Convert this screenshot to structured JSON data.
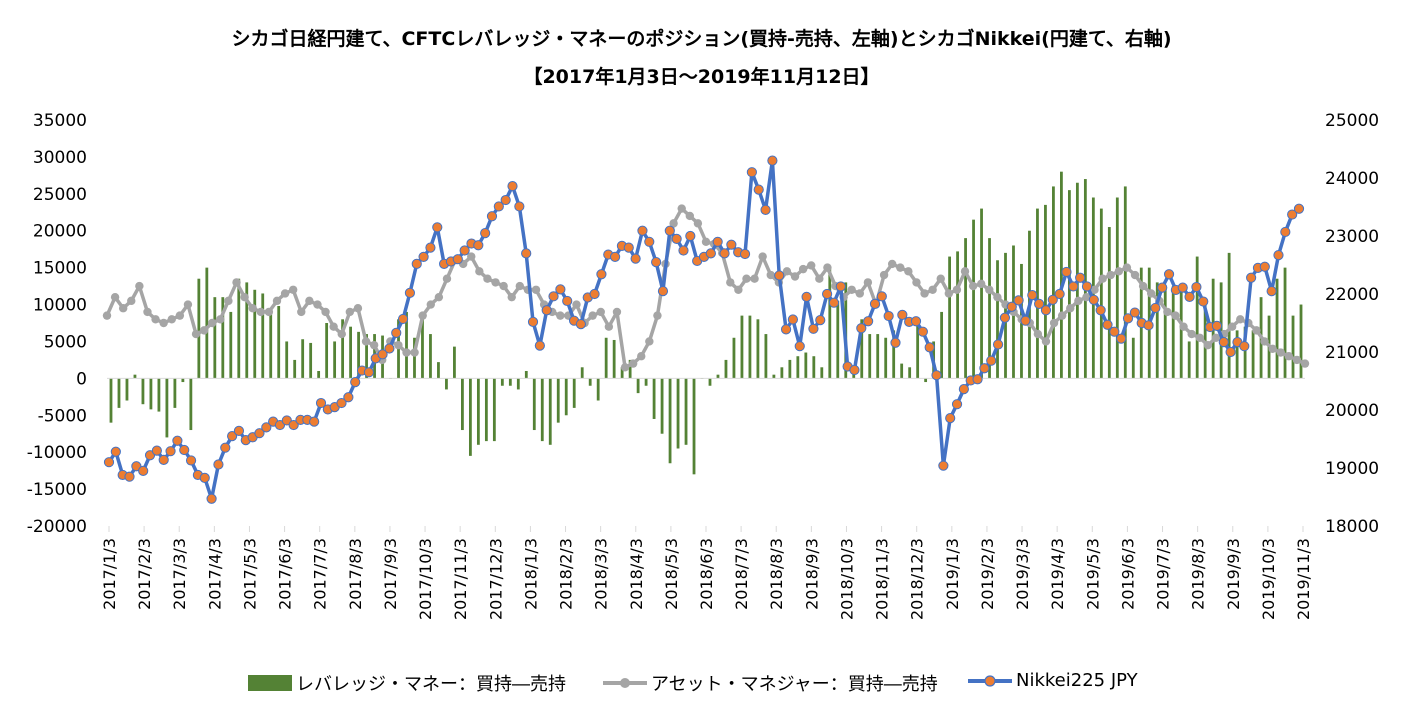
{
  "chart_data": {
    "type": "bar+line",
    "title": "シカゴ日経円建て、CFTCレバレッジ・マネーのポジション(買持-売持、左軸)とシカゴNikkei(円建て、右軸)",
    "subtitle": "【2017年1月3日～2019年11月12日】",
    "left_axis": {
      "range": [
        -20000,
        35000
      ],
      "ticks": [
        "-20000",
        "-15000",
        "-10000",
        "-5000",
        "0",
        "5000",
        "10000",
        "15000",
        "20000",
        "25000",
        "30000",
        "35000"
      ]
    },
    "right_axis": {
      "range": [
        18000,
        25000
      ],
      "ticks": [
        "18000",
        "19000",
        "20000",
        "21000",
        "22000",
        "23000",
        "24000",
        "25000"
      ]
    },
    "x_tick_labels": [
      "2017/1/3",
      "2017/2/3",
      "2017/3/3",
      "2017/4/3",
      "2017/5/3",
      "2017/6/3",
      "2017/7/3",
      "2017/8/3",
      "2017/9/3",
      "2017/10/3",
      "2017/11/3",
      "2017/12/3",
      "2018/1/3",
      "2018/2/3",
      "2018/3/3",
      "2018/4/3",
      "2018/5/3",
      "2018/6/3",
      "2018/7/3",
      "2018/8/3",
      "2018/9/3",
      "2018/10/3",
      "2018/11/3",
      "2018/12/3",
      "2019/1/3",
      "2019/2/3",
      "2019/3/3",
      "2019/4/3",
      "2019/5/3",
      "2019/6/3",
      "2019/7/3",
      "2019/8/3",
      "2019/9/3",
      "2019/10/3",
      "2019/11/3"
    ],
    "colors": {
      "leveraged": "#548235",
      "asset": "#a5a5a5",
      "nikkei_line": "#4472c4",
      "nikkei_marker": "#ed7d31"
    },
    "series": [
      {
        "name": "レバレッジ・マネー：買持―売持",
        "axis": "left",
        "type": "bar",
        "values": [
          -6000,
          -4000,
          -3000,
          500,
          -3500,
          -4200,
          -4500,
          -8000,
          -4000,
          -500,
          -7000,
          13500,
          15000,
          11000,
          11000,
          9000,
          13500,
          13000,
          12000,
          11500,
          9500,
          9800,
          5000,
          2500,
          5300,
          4800,
          1000,
          7500,
          5000,
          8000,
          7000,
          6300,
          6000,
          6000,
          5800,
          0,
          8000,
          9000,
          5500,
          9000,
          6000,
          2200,
          -1500,
          4300,
          -7000,
          -10500,
          -9000,
          -8500,
          -8500,
          -1000,
          -1000,
          -1500,
          1000,
          -7000,
          -8500,
          -9000,
          -6000,
          -5000,
          -4000,
          1500,
          -1000,
          -3000,
          5500,
          5200,
          1500,
          2500,
          -2000,
          -1000,
          -5500,
          -7500,
          -11500,
          -9500,
          -9000,
          -13000,
          0,
          -1000,
          500,
          2500,
          5500,
          8500,
          8500,
          8000,
          6000,
          500,
          1500,
          2500,
          3000,
          3500,
          3000,
          1500,
          15000,
          10500,
          13000,
          1000,
          8000,
          6000,
          6000,
          5500,
          6500,
          2000,
          1500,
          7500,
          -500,
          5000,
          9000,
          16500,
          17200,
          19000,
          21500,
          23000,
          19000,
          16000,
          17000,
          18000,
          15500,
          20000,
          23000,
          23500,
          26000,
          28000,
          25500,
          26500,
          27000,
          24500,
          23000,
          20500,
          24500,
          26000,
          5500,
          15000,
          15000,
          13000,
          12500,
          12500,
          12000,
          5000,
          16500,
          10500,
          13500,
          13000,
          17000,
          6500,
          7000,
          6500,
          11000,
          8500,
          13500,
          15000,
          8500,
          10000
        ]
      },
      {
        "name": "アセット・マネジャー：買持―売持",
        "axis": "left",
        "type": "line",
        "values": [
          8500,
          11000,
          9500,
          10500,
          12500,
          9000,
          8000,
          7500,
          8000,
          8500,
          10000,
          6000,
          6500,
          7500,
          8000,
          10500,
          13000,
          11000,
          9500,
          9000,
          9000,
          10500,
          11500,
          12000,
          9000,
          10500,
          10000,
          9000,
          7000,
          6000,
          9000,
          9500,
          5000,
          4500,
          2500,
          5000,
          4500,
          3500,
          3500,
          8500,
          10000,
          11000,
          13500,
          16000,
          15500,
          16500,
          14500,
          13500,
          13000,
          12500,
          11000,
          12500,
          12000,
          12000,
          10000,
          9000,
          8500,
          8500,
          10000,
          7500,
          8500,
          9000,
          7000,
          9000,
          1500,
          2000,
          3000,
          5000,
          8500,
          15500,
          21000,
          23000,
          22000,
          21000,
          18500,
          18200,
          17000,
          13000,
          12000,
          13500,
          13500,
          16500,
          14000,
          13000,
          14500,
          13800,
          14800,
          15300,
          13500,
          15000,
          12500,
          11000,
          12000,
          11500,
          13000,
          10000,
          14000,
          15500,
          15000,
          14500,
          13000,
          11500,
          12000,
          13500,
          11500,
          12000,
          14500,
          12500,
          12800,
          12000,
          11000,
          10000,
          9000,
          8000,
          7500,
          6000,
          5000,
          7500,
          8500,
          9500,
          10500,
          11000,
          12000,
          13500,
          14000,
          14500,
          15000,
          14000,
          12500,
          11500,
          10500,
          9000,
          8500,
          7000,
          6000,
          5500,
          4500,
          5500,
          6000,
          7000,
          8000,
          7500,
          6500,
          5000,
          4000,
          3500,
          3000,
          2500,
          2000
        ]
      },
      {
        "name": "Nikkei225 JPY",
        "axis": "right",
        "type": "line",
        "values": [
          19100,
          19280,
          18880,
          18850,
          19030,
          18950,
          19220,
          19300,
          19140,
          19290,
          19470,
          19310,
          19130,
          18880,
          18830,
          18470,
          19060,
          19350,
          19550,
          19640,
          19480,
          19530,
          19600,
          19700,
          19800,
          19740,
          19820,
          19740,
          19830,
          19830,
          19800,
          20120,
          20010,
          20050,
          20120,
          20220,
          20480,
          20680,
          20650,
          20890,
          20960,
          21060,
          21330,
          21570,
          22020,
          22520,
          22640,
          22800,
          23150,
          22520,
          22560,
          22600,
          22750,
          22870,
          22840,
          23050,
          23340,
          23510,
          23620,
          23860,
          23510,
          22700,
          21520,
          21110,
          21720,
          21960,
          22080,
          21880,
          21540,
          21480,
          21940,
          22000,
          22340,
          22680,
          22640,
          22830,
          22800,
          22610,
          23090,
          22900,
          22550,
          22050,
          23090,
          22950,
          22750,
          23000,
          22570,
          22640,
          22700,
          22900,
          22700,
          22850,
          22720,
          22690,
          24100,
          23800,
          23450,
          24300,
          22320,
          21390,
          21560,
          21100,
          21950,
          21400,
          21550,
          22000,
          21850,
          22130,
          20750,
          20690,
          21410,
          21530,
          21830,
          21960,
          21620,
          21160,
          21640,
          21520,
          21530,
          21350,
          21080,
          20600,
          19040,
          19860,
          20100,
          20360,
          20510,
          20530,
          20720,
          20850,
          21130,
          21590,
          21780,
          21890,
          21540,
          21980,
          21830,
          21720,
          21900,
          22000,
          22380,
          22130,
          22280,
          22130,
          21900,
          21720,
          21470,
          21350,
          21230,
          21580,
          21680,
          21500,
          21460,
          21760,
          22110,
          22340,
          22070,
          22110,
          21950,
          22120,
          21870,
          21430,
          21450,
          21170,
          21000,
          21170,
          21100,
          22280,
          22450,
          22470,
          22050,
          22670,
          23070,
          23370,
          23470
        ]
      }
    ]
  },
  "legend": [
    {
      "label": "レバレッジ・マネー：買持―売持",
      "icon": "bar-swatch-icon"
    },
    {
      "label": "アセット・マネジャー：買持―売持",
      "icon": "gray-line-marker-icon"
    },
    {
      "label": "Nikkei225 JPY",
      "icon": "blue-line-orange-marker-icon"
    }
  ]
}
